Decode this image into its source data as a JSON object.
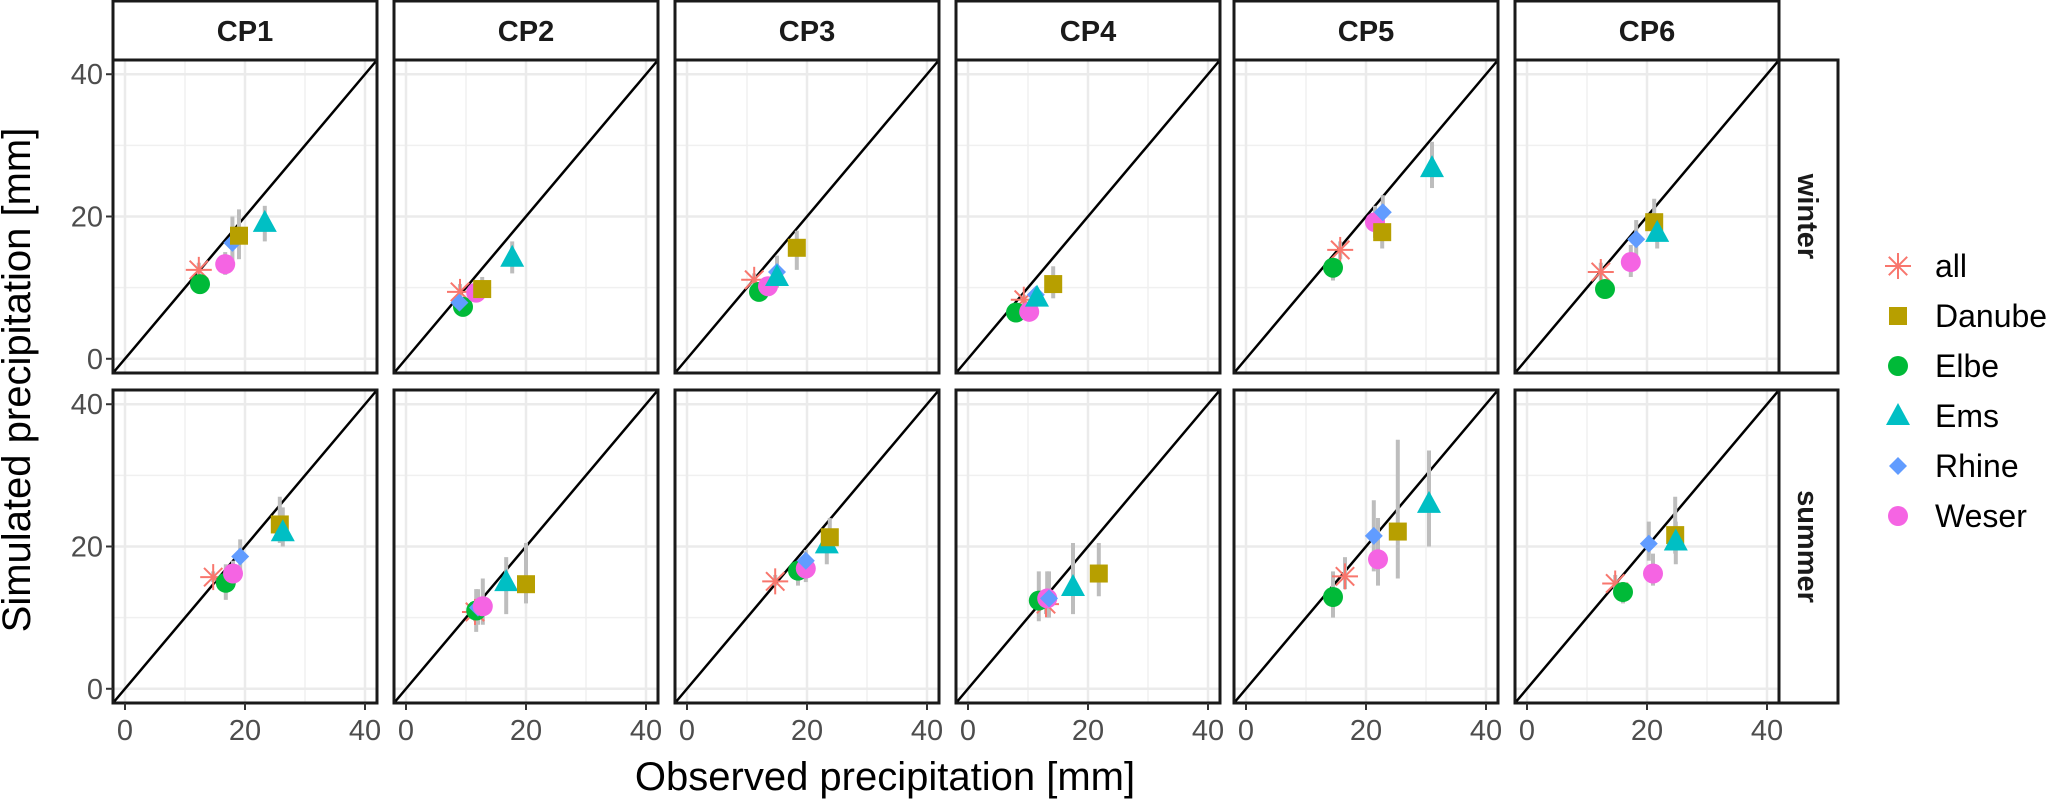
{
  "chart_data": {
    "type": "scatter",
    "title": "",
    "xlabel": "Observed precipitation [mm]",
    "ylabel": "Simulated precipitation [mm]",
    "xlim": [
      -2,
      42
    ],
    "ylim": [
      -2,
      42
    ],
    "xticks": [
      0,
      20,
      40
    ],
    "yticks": [
      0,
      20,
      40
    ],
    "grid": true,
    "reference_line": "1:1 diagonal",
    "facet_columns": [
      "CP1",
      "CP2",
      "CP3",
      "CP4",
      "CP5",
      "CP6"
    ],
    "facet_rows": [
      "winter",
      "summer"
    ],
    "legend": {
      "placement": "right",
      "entries": [
        {
          "name": "all",
          "shape": "asterisk",
          "color": "#F8766D"
        },
        {
          "name": "Danube",
          "shape": "square",
          "color": "#B79F00"
        },
        {
          "name": "Elbe",
          "shape": "circle",
          "color": "#00BA38"
        },
        {
          "name": "Ems",
          "shape": "triangle",
          "color": "#00BFC4"
        },
        {
          "name": "Rhine",
          "shape": "diamond",
          "color": "#619CFF"
        },
        {
          "name": "Weser",
          "shape": "circle",
          "color": "#F564E3"
        }
      ]
    },
    "errorbar_color": "#bdbdbd",
    "panels": [
      {
        "row": "winter",
        "col": "CP1",
        "points": [
          {
            "series": "all",
            "x": 12.3,
            "y": 12.5,
            "ylo": 11.5,
            "yhi": 13.5
          },
          {
            "series": "Elbe",
            "x": 12.5,
            "y": 10.5,
            "ylo": 10,
            "yhi": 11.5
          },
          {
            "series": "Weser",
            "x": 16.7,
            "y": 13.3,
            "ylo": 11.8,
            "yhi": 15
          },
          {
            "series": "Rhine",
            "x": 17.9,
            "y": 16.3,
            "ylo": 13.5,
            "yhi": 20
          },
          {
            "series": "Danube",
            "x": 19,
            "y": 17.3,
            "ylo": 14,
            "yhi": 21
          },
          {
            "series": "Ems",
            "x": 23.3,
            "y": 19.1,
            "ylo": 16.5,
            "yhi": 21.5
          }
        ]
      },
      {
        "row": "winter",
        "col": "CP2",
        "points": [
          {
            "series": "all",
            "x": 9,
            "y": 9.4,
            "ylo": 8.5,
            "yhi": 10.5
          },
          {
            "series": "Elbe",
            "x": 9.5,
            "y": 7.3,
            "ylo": 6.8,
            "yhi": 8
          },
          {
            "series": "Rhine",
            "x": 8.9,
            "y": 7.9,
            "ylo": 7,
            "yhi": 9
          },
          {
            "series": "Weser",
            "x": 11.7,
            "y": 9.3,
            "ylo": 8.5,
            "yhi": 10.5
          },
          {
            "series": "Danube",
            "x": 12.7,
            "y": 9.8,
            "ylo": 9,
            "yhi": 11.5
          },
          {
            "series": "Ems",
            "x": 17.7,
            "y": 14.2,
            "ylo": 12,
            "yhi": 16.5
          }
        ]
      },
      {
        "row": "winter",
        "col": "CP3",
        "points": [
          {
            "series": "all",
            "x": 11.2,
            "y": 11.1,
            "ylo": 10.5,
            "yhi": 12
          },
          {
            "series": "Elbe",
            "x": 12,
            "y": 9.4,
            "ylo": 8.5,
            "yhi": 10.5
          },
          {
            "series": "Weser",
            "x": 13.5,
            "y": 10.2,
            "ylo": 9,
            "yhi": 11.5
          },
          {
            "series": "Rhine",
            "x": 15,
            "y": 12.2,
            "ylo": 10,
            "yhi": 14.5
          },
          {
            "series": "Ems",
            "x": 15,
            "y": 11.5,
            "ylo": 10,
            "yhi": 13
          },
          {
            "series": "Danube",
            "x": 18.3,
            "y": 15.6,
            "ylo": 12.5,
            "yhi": 18
          }
        ]
      },
      {
        "row": "winter",
        "col": "CP4",
        "points": [
          {
            "series": "all",
            "x": 9.3,
            "y": 8.3,
            "ylo": 7.5,
            "yhi": 9
          },
          {
            "series": "Elbe",
            "x": 8,
            "y": 6.5,
            "ylo": 6,
            "yhi": 7.2
          },
          {
            "series": "Weser",
            "x": 10.2,
            "y": 6.6,
            "ylo": 6,
            "yhi": 7.5
          },
          {
            "series": "Rhine",
            "x": 11.3,
            "y": 9,
            "ylo": 8,
            "yhi": 10
          },
          {
            "series": "Ems",
            "x": 11.5,
            "y": 8.6,
            "ylo": 7.5,
            "yhi": 10
          },
          {
            "series": "Danube",
            "x": 14.2,
            "y": 10.5,
            "ylo": 8.5,
            "yhi": 13
          }
        ]
      },
      {
        "row": "winter",
        "col": "CP5",
        "points": [
          {
            "series": "all",
            "x": 15.7,
            "y": 15.3,
            "ylo": 14,
            "yhi": 16.5
          },
          {
            "series": "Elbe",
            "x": 14.5,
            "y": 12.8,
            "ylo": 11,
            "yhi": 14
          },
          {
            "series": "Weser",
            "x": 21.5,
            "y": 19.2,
            "ylo": 17,
            "yhi": 21.5
          },
          {
            "series": "Rhine",
            "x": 22.8,
            "y": 20.6,
            "ylo": 18,
            "yhi": 23
          },
          {
            "series": "Danube",
            "x": 22.7,
            "y": 17.8,
            "ylo": 15.5,
            "yhi": 20
          },
          {
            "series": "Ems",
            "x": 31,
            "y": 26.8,
            "ylo": 24,
            "yhi": 30.5
          }
        ]
      },
      {
        "row": "winter",
        "col": "CP6",
        "points": [
          {
            "series": "all",
            "x": 12.3,
            "y": 12.2,
            "ylo": 11,
            "yhi": 13.5
          },
          {
            "series": "Elbe",
            "x": 13,
            "y": 9.8,
            "ylo": 9,
            "yhi": 11
          },
          {
            "series": "Weser",
            "x": 17.3,
            "y": 13.6,
            "ylo": 11.5,
            "yhi": 16
          },
          {
            "series": "Rhine",
            "x": 18.2,
            "y": 16.8,
            "ylo": 14,
            "yhi": 19.5
          },
          {
            "series": "Danube",
            "x": 21.2,
            "y": 19.2,
            "ylo": 16.5,
            "yhi": 22.5
          },
          {
            "series": "Ems",
            "x": 21.7,
            "y": 17.7,
            "ylo": 15.5,
            "yhi": 19.5
          }
        ]
      },
      {
        "row": "summer",
        "col": "CP1",
        "points": [
          {
            "series": "all",
            "x": 14.7,
            "y": 15.7,
            "ylo": 15,
            "yhi": 16.5
          },
          {
            "series": "Elbe",
            "x": 16.8,
            "y": 14.9,
            "ylo": 12.5,
            "yhi": 17.5
          },
          {
            "series": "Weser",
            "x": 18,
            "y": 16.2,
            "ylo": 14.5,
            "yhi": 18
          },
          {
            "series": "Rhine",
            "x": 19.2,
            "y": 18.6,
            "ylo": 16,
            "yhi": 21
          },
          {
            "series": "Danube",
            "x": 25.8,
            "y": 23.1,
            "ylo": 20.5,
            "yhi": 27
          },
          {
            "series": "Ems",
            "x": 26.3,
            "y": 22,
            "ylo": 20,
            "yhi": 25.5
          }
        ]
      },
      {
        "row": "summer",
        "col": "CP2",
        "points": [
          {
            "series": "all",
            "x": 11.5,
            "y": 10.8,
            "ylo": 9.5,
            "yhi": 12
          },
          {
            "series": "Elbe",
            "x": 11.7,
            "y": 11,
            "ylo": 8,
            "yhi": 14
          },
          {
            "series": "Rhine",
            "x": 12,
            "y": 11.4,
            "ylo": 9,
            "yhi": 14
          },
          {
            "series": "Weser",
            "x": 12.8,
            "y": 11.6,
            "ylo": 9,
            "yhi": 15.5
          },
          {
            "series": "Ems",
            "x": 16.7,
            "y": 15,
            "ylo": 10.5,
            "yhi": 18.5
          },
          {
            "series": "Danube",
            "x": 20,
            "y": 14.7,
            "ylo": 12,
            "yhi": 20.5
          }
        ]
      },
      {
        "row": "summer",
        "col": "CP3",
        "points": [
          {
            "series": "all",
            "x": 14.7,
            "y": 15.1,
            "ylo": 14.5,
            "yhi": 16
          },
          {
            "series": "Elbe",
            "x": 18.5,
            "y": 16.6,
            "ylo": 14.5,
            "yhi": 18
          },
          {
            "series": "Weser",
            "x": 19.8,
            "y": 16.9,
            "ylo": 15,
            "yhi": 18.5
          },
          {
            "series": "Rhine",
            "x": 19.8,
            "y": 18,
            "ylo": 16,
            "yhi": 19.5
          },
          {
            "series": "Ems",
            "x": 23.3,
            "y": 20.3,
            "ylo": 17.5,
            "yhi": 22
          },
          {
            "series": "Danube",
            "x": 23.8,
            "y": 21.3,
            "ylo": 19.5,
            "yhi": 24
          }
        ]
      },
      {
        "row": "summer",
        "col": "CP4",
        "points": [
          {
            "series": "all",
            "x": 13,
            "y": 11.9,
            "ylo": 10.5,
            "yhi": 13
          },
          {
            "series": "Elbe",
            "x": 11.8,
            "y": 12.4,
            "ylo": 9.5,
            "yhi": 16.5
          },
          {
            "series": "Weser",
            "x": 13.2,
            "y": 12.7,
            "ylo": 10,
            "yhi": 16.5
          },
          {
            "series": "Rhine",
            "x": 13.5,
            "y": 12.7,
            "ylo": 10,
            "yhi": 16.5
          },
          {
            "series": "Ems",
            "x": 17.5,
            "y": 14.3,
            "ylo": 10.5,
            "yhi": 20.5
          },
          {
            "series": "Danube",
            "x": 21.8,
            "y": 16.2,
            "ylo": 13,
            "yhi": 20.5
          }
        ]
      },
      {
        "row": "summer",
        "col": "CP5",
        "points": [
          {
            "series": "all",
            "x": 16.5,
            "y": 15.8,
            "ylo": 14,
            "yhi": 18.5
          },
          {
            "series": "Elbe",
            "x": 14.5,
            "y": 12.9,
            "ylo": 10,
            "yhi": 16.5
          },
          {
            "series": "Weser",
            "x": 22,
            "y": 18.2,
            "ylo": 14.5,
            "yhi": 24
          },
          {
            "series": "Rhine",
            "x": 21.3,
            "y": 21.5,
            "ylo": 16.5,
            "yhi": 26.5
          },
          {
            "series": "Danube",
            "x": 25.3,
            "y": 22.1,
            "ylo": 15.5,
            "yhi": 35
          },
          {
            "series": "Ems",
            "x": 30.5,
            "y": 26,
            "ylo": 20,
            "yhi": 33.5
          }
        ]
      },
      {
        "row": "summer",
        "col": "CP6",
        "points": [
          {
            "series": "all",
            "x": 14.7,
            "y": 14.8,
            "ylo": 13.5,
            "yhi": 16
          },
          {
            "series": "Elbe",
            "x": 16,
            "y": 13.6,
            "ylo": 12,
            "yhi": 15
          },
          {
            "series": "Weser",
            "x": 21,
            "y": 16.2,
            "ylo": 14.5,
            "yhi": 19
          },
          {
            "series": "Rhine",
            "x": 20.3,
            "y": 20.4,
            "ylo": 18,
            "yhi": 23.5
          },
          {
            "series": "Danube",
            "x": 24.7,
            "y": 21.6,
            "ylo": 19,
            "yhi": 27
          },
          {
            "series": "Ems",
            "x": 24.8,
            "y": 20.7,
            "ylo": 17.5,
            "yhi": 23.5
          }
        ]
      }
    ]
  }
}
